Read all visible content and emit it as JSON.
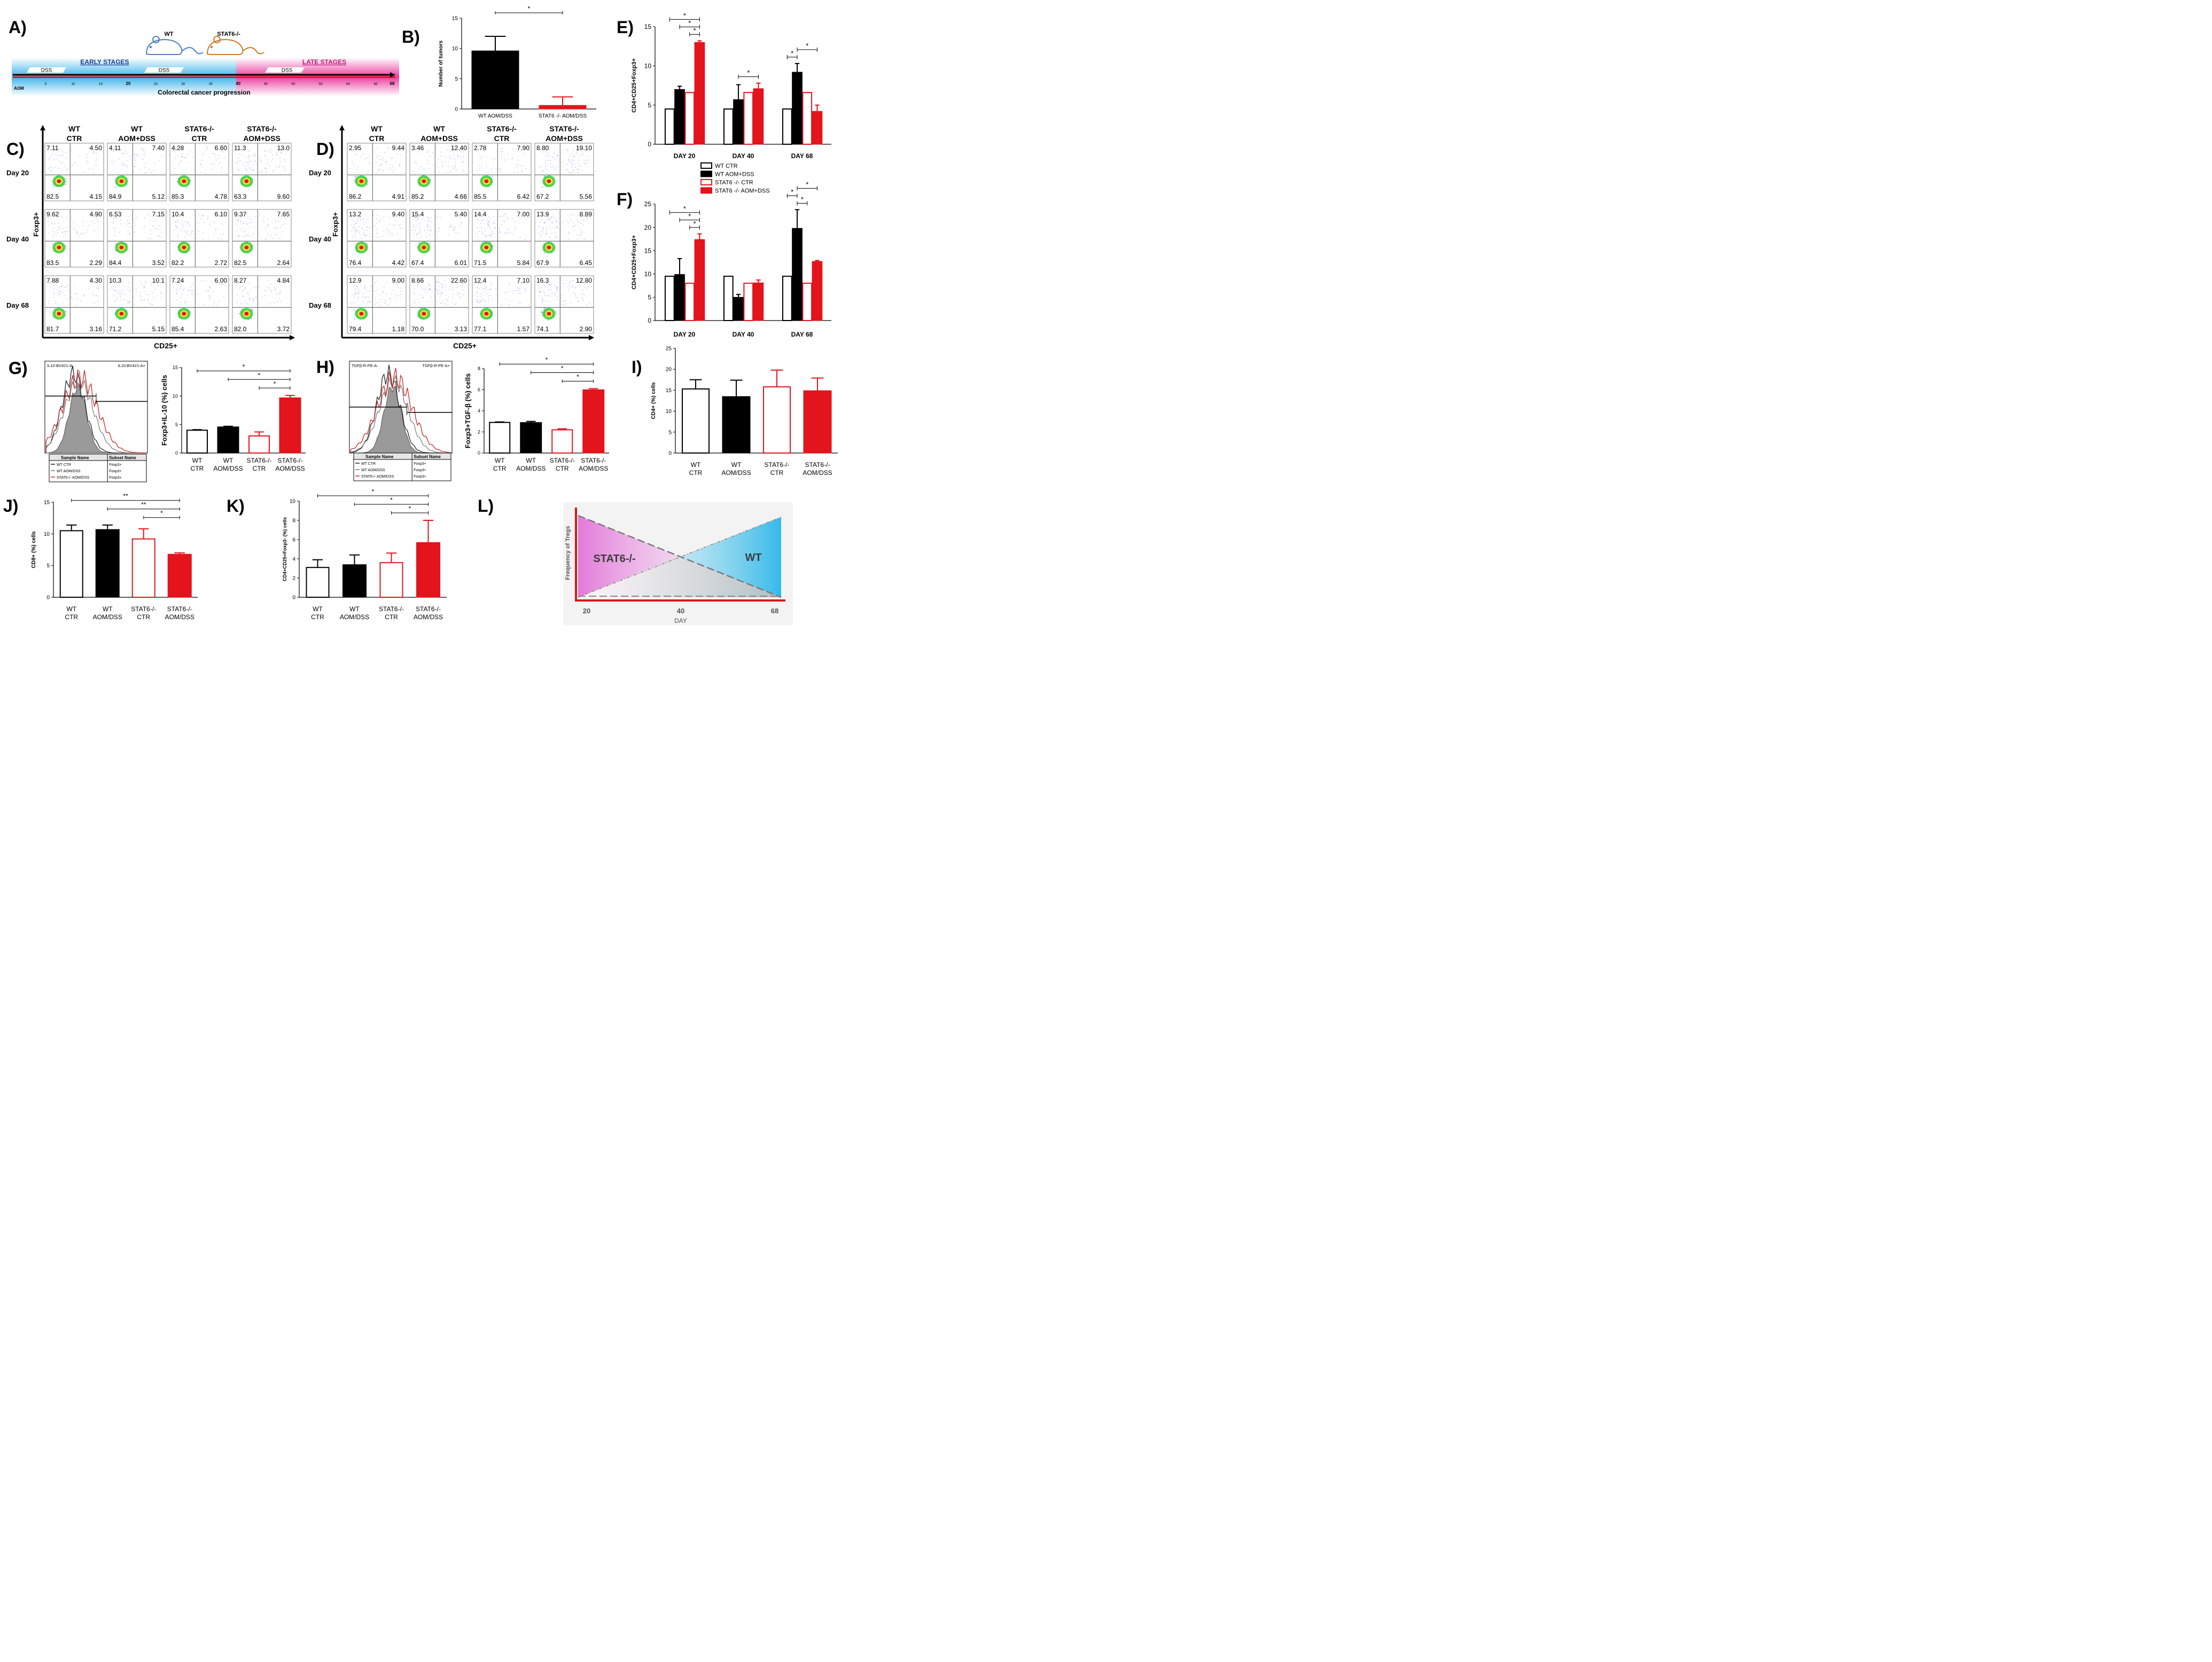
{
  "colors": {
    "black": "#000000",
    "red": "#e3141b",
    "white": "#ffffff",
    "grey": "#9a9a9a",
    "timeline_blue": "#3fb4ea",
    "timeline_pink": "#ea3fa1",
    "early_text": "#1c3f93",
    "late_text": "#c2187a",
    "mouse_wt": "#4f7ec2",
    "mouse_ko": "#c97b2c"
  },
  "panelA": {
    "letter": "A)",
    "wt_label": "WT",
    "ko_label": "STAT6-/-",
    "early_label": "EARLY STAGES",
    "late_label": "LATE STAGES",
    "dss_label": "DSS",
    "aom_label": "AOM",
    "days": [
      "5",
      "10",
      "15",
      "20",
      "25",
      "30",
      "35",
      "40",
      "45",
      "50",
      "55",
      "60",
      "65",
      "68"
    ],
    "bold_days": [
      "20",
      "40",
      "68"
    ],
    "caption": "Colorectal cancer progression"
  },
  "flow": {
    "C": {
      "letter": "C)",
      "x_axis": "CD25+",
      "y_axis": "Foxp3+",
      "columns": [
        [
          "WT",
          "CTR"
        ],
        [
          "WT",
          "AOM+DSS"
        ],
        [
          "STAT6-/-",
          "CTR"
        ],
        [
          "STAT6-/-",
          "AOM+DSS"
        ]
      ],
      "rows": [
        "Day 20",
        "Day 40",
        "Day 68"
      ],
      "values": [
        [
          [
            "7.11",
            "4.50",
            "82.5",
            "4.15"
          ],
          [
            "4.11",
            "7.40",
            "84.9",
            "5.12"
          ],
          [
            "4.28",
            "6.60",
            "85.3",
            "4.78"
          ],
          [
            "11.3",
            "13.0",
            "63.3",
            "9.60"
          ]
        ],
        [
          [
            "9.62",
            "4.90",
            "83.5",
            "2.29"
          ],
          [
            "6.53",
            "7.15",
            "84.4",
            "3.52"
          ],
          [
            "10.4",
            "6.10",
            "82.2",
            "2.72"
          ],
          [
            "9.37",
            "7.65",
            "82.5",
            "2.64"
          ]
        ],
        [
          [
            "7.88",
            "4.30",
            "81.7",
            "3.16"
          ],
          [
            "10.3",
            "10.1",
            "71.2",
            "5.15"
          ],
          [
            "7.24",
            "6.00",
            "85.4",
            "2.63"
          ],
          [
            "8.27",
            "4.84",
            "82.0",
            "3.72"
          ]
        ]
      ]
    },
    "D": {
      "letter": "D)",
      "x_axis": "CD25+",
      "y_axis": "Foxp3+",
      "columns": [
        [
          "WT",
          "CTR"
        ],
        [
          "WT",
          "AOM+DSS"
        ],
        [
          "STAT6-/-",
          "CTR"
        ],
        [
          "STAT6-/-",
          "AOM+DSS"
        ]
      ],
      "rows": [
        "Day 20",
        "Day 40",
        "Day 68"
      ],
      "values": [
        [
          [
            "2.95",
            "9.44",
            "86.2",
            "4.91"
          ],
          [
            "3.46",
            "12.40",
            "85.2",
            "4.66"
          ],
          [
            "2.78",
            "7.90",
            "85.5",
            "6.42"
          ],
          [
            "8.80",
            "19.10",
            "67.2",
            "5.56"
          ]
        ],
        [
          [
            "13.2",
            "9.40",
            "76.4",
            "4.42"
          ],
          [
            "15.4",
            "5.40",
            "67.4",
            "6.01"
          ],
          [
            "14.4",
            "7.00",
            "71.5",
            "5.84"
          ],
          [
            "13.9",
            "8.89",
            "67.9",
            "6.45"
          ]
        ],
        [
          [
            "12.9",
            "9.00",
            "79.4",
            "1.18"
          ],
          [
            "8.66",
            "22.60",
            "70.0",
            "3.13"
          ],
          [
            "12.4",
            "7.10",
            "77.1",
            "1.57"
          ],
          [
            "16.3",
            "12.80",
            "74.1",
            "2.90"
          ]
        ]
      ]
    }
  },
  "histograms": {
    "G": {
      "left_gate": "IL10-BV421-A-",
      "right_gate": "IL10-BV421-A+",
      "table_headers": [
        "Sample Name",
        "Subset Name"
      ],
      "rows": [
        [
          "WT CTR",
          "Foxp3+"
        ],
        [
          "WT AOM/DSS",
          "Foxp3+"
        ],
        [
          "STAT6-/- AOM/DSS",
          "Foxp3+"
        ]
      ]
    },
    "H": {
      "left_gate": "TGFβ-R-PE-A-",
      "right_gate": "TGFβ-R-PE-A+",
      "table_headers": [
        "Sample Name",
        "Subset Name"
      ],
      "rows": [
        [
          "WT CTR",
          "Foxp3+"
        ],
        [
          "WT AOM/DSS",
          "Foxp3+"
        ],
        [
          "STAT6-/- AOM/DSS",
          "Foxp3+"
        ]
      ]
    }
  },
  "legendE": {
    "entries": [
      "WT CTR",
      "WT AOM+DSS",
      "STAT6 -/- CTR",
      "STAT6 -/- AOM+DSS"
    ]
  },
  "panelL": {
    "letter": "L)",
    "ylabel": "Frequency of Tregs",
    "xlabel": "DAY",
    "ticks": [
      "20",
      "40",
      "68"
    ],
    "left_label": "STAT6-/-",
    "right_label": "WT"
  },
  "chart_data": [
    {
      "id": "B",
      "letter": "B)",
      "type": "bar",
      "categories": [
        "WT AOM/DSS",
        "STAT6 -/- AOM/DSS"
      ],
      "values": [
        9.6,
        0.6
      ],
      "errors": [
        2.4,
        1.4
      ],
      "styles": [
        "black",
        "red"
      ],
      "ylabel": "Number of tumors",
      "ylim": [
        0,
        15
      ],
      "yticks": [
        "0",
        "5",
        "10",
        "15"
      ],
      "significance": [
        {
          "from": 0,
          "to": 1,
          "label": "*"
        }
      ]
    },
    {
      "id": "E",
      "letter": "E)",
      "type": "bar",
      "groups": [
        "DAY 20",
        "DAY 40",
        "DAY 68"
      ],
      "series": [
        {
          "name": "WT CTR",
          "style": "open-black",
          "values": [
            4.5,
            4.5,
            4.5
          ],
          "errors": [
            0,
            0,
            0
          ]
        },
        {
          "name": "WT AOM+DSS",
          "style": "black",
          "values": [
            7.0,
            5.7,
            9.2
          ],
          "errors": [
            0.4,
            1.9,
            1.1
          ]
        },
        {
          "name": "STAT6 -/- CTR",
          "style": "open-red",
          "values": [
            6.6,
            6.6,
            6.6
          ],
          "errors": [
            0,
            0,
            0
          ]
        },
        {
          "name": "STAT6 -/- AOM+DSS",
          "style": "red",
          "values": [
            13.0,
            7.1,
            4.2
          ],
          "errors": [
            0.2,
            0.7,
            0.8
          ]
        }
      ],
      "ylabel": "CD4+CD25+Foxp3+",
      "ylim": [
        0,
        15
      ],
      "yticks": [
        "0",
        "5",
        "10",
        "15"
      ],
      "significance": [
        {
          "group": 0,
          "from": 0,
          "to": 3,
          "label": "*"
        },
        {
          "group": 0,
          "from": 1,
          "to": 3,
          "label": "*"
        },
        {
          "group": 0,
          "from": 2,
          "to": 3,
          "label": "*"
        },
        {
          "group": 1,
          "from": 1,
          "to": 3,
          "label": "*"
        },
        {
          "group": 2,
          "from": 0,
          "to": 1,
          "label": "*"
        },
        {
          "group": 2,
          "from": 1,
          "to": 3,
          "label": "*"
        }
      ]
    },
    {
      "id": "F",
      "letter": "F)",
      "type": "bar",
      "groups": [
        "DAY 20",
        "DAY 40",
        "DAY 68"
      ],
      "series": [
        {
          "name": "WT CTR",
          "style": "open-black",
          "values": [
            9.5,
            9.5,
            9.5
          ],
          "errors": [
            0,
            0,
            0
          ]
        },
        {
          "name": "WT AOM+DSS",
          "style": "black",
          "values": [
            9.9,
            5.0,
            19.8
          ],
          "errors": [
            3.4,
            0.6,
            4.0
          ]
        },
        {
          "name": "STAT6 -/- CTR",
          "style": "open-red",
          "values": [
            8.0,
            8.0,
            8.0
          ],
          "errors": [
            0,
            0,
            0
          ]
        },
        {
          "name": "STAT6 -/- AOM+DSS",
          "style": "red",
          "values": [
            17.4,
            8.1,
            12.7
          ],
          "errors": [
            1.2,
            0.6,
            0.2
          ]
        }
      ],
      "ylabel": "CD4+CD25+Foxp3+",
      "ylim": [
        0,
        25
      ],
      "yticks": [
        "0",
        "5",
        "10",
        "15",
        "20",
        "25"
      ],
      "significance": [
        {
          "group": 0,
          "from": 0,
          "to": 3,
          "label": "*"
        },
        {
          "group": 0,
          "from": 1,
          "to": 3,
          "label": "*"
        },
        {
          "group": 0,
          "from": 2,
          "to": 3,
          "label": "*"
        },
        {
          "group": 2,
          "from": 0,
          "to": 1,
          "label": "*"
        },
        {
          "group": 2,
          "from": 1,
          "to": 2,
          "label": "*"
        },
        {
          "group": 2,
          "from": 1,
          "to": 3,
          "label": "*"
        }
      ]
    },
    {
      "id": "G",
      "letter": "G)",
      "type": "bar",
      "categories": [
        [
          "WT",
          "CTR"
        ],
        [
          "WT",
          "AOM/DSS"
        ],
        [
          "STAT6-/-",
          "CTR"
        ],
        [
          "STAT6-/-",
          "AOM/DSS"
        ]
      ],
      "values": [
        4.0,
        4.6,
        3.0,
        9.7
      ],
      "errors": [
        0.1,
        0.1,
        0.7,
        0.4
      ],
      "styles": [
        "open-black",
        "black",
        "open-red",
        "red"
      ],
      "ylabel": "Foxp3+IL-10 (%) cells",
      "ylim": [
        0,
        15
      ],
      "yticks": [
        "0",
        "5",
        "10",
        "15"
      ],
      "significance": [
        {
          "from": 0,
          "to": 3,
          "label": "*"
        },
        {
          "from": 1,
          "to": 3,
          "label": "*"
        },
        {
          "from": 2,
          "to": 3,
          "label": "*"
        }
      ]
    },
    {
      "id": "H",
      "letter": "H)",
      "type": "bar",
      "categories": [
        [
          "WT",
          "CTR"
        ],
        [
          "WT",
          "AOM/DSS"
        ],
        [
          "STAT6-/-",
          "CTR"
        ],
        [
          "STAT6-/-",
          "AOM/DSS"
        ]
      ],
      "values": [
        2.9,
        2.9,
        2.2,
        6.0
      ],
      "errors": [
        0.05,
        0.1,
        0.1,
        0.1
      ],
      "styles": [
        "open-black",
        "black",
        "open-red",
        "red"
      ],
      "ylabel": "Foxp3+TGF-β (%) cells",
      "ylim": [
        0,
        8
      ],
      "yticks": [
        "0",
        "2",
        "4",
        "6",
        "8"
      ],
      "significance": [
        {
          "from": 0,
          "to": 3,
          "label": "*"
        },
        {
          "from": 1,
          "to": 3,
          "label": "*"
        },
        {
          "from": 2,
          "to": 3,
          "label": "*"
        }
      ]
    },
    {
      "id": "I",
      "letter": "I)",
      "type": "bar",
      "categories": [
        [
          "WT",
          "CTR"
        ],
        [
          "WT",
          "AOM/DSS"
        ],
        [
          "STAT6-/-",
          "CTR"
        ],
        [
          "STAT6-/-",
          "AOM/DSS"
        ]
      ],
      "values": [
        15.3,
        13.5,
        15.8,
        14.9
      ],
      "errors": [
        2.2,
        3.9,
        4.0,
        3.0
      ],
      "styles": [
        "open-black",
        "black",
        "open-red",
        "red"
      ],
      "ylabel": "CD4+ (%) cells",
      "ylim": [
        0,
        25
      ],
      "yticks": [
        "0",
        "5",
        "10",
        "15",
        "20",
        "25"
      ],
      "significance": []
    },
    {
      "id": "J",
      "letter": "J)",
      "type": "bar",
      "categories": [
        [
          "WT",
          "CTR"
        ],
        [
          "WT",
          "AOM/DSS"
        ],
        [
          "STAT6-/-",
          "CTR"
        ],
        [
          "STAT6-/-",
          "AOM/DSS"
        ]
      ],
      "values": [
        10.5,
        10.7,
        9.2,
        6.8
      ],
      "errors": [
        0.9,
        0.7,
        1.6,
        0.2
      ],
      "styles": [
        "open-black",
        "black",
        "open-red",
        "red"
      ],
      "ylabel": "CD8+ (%) cells",
      "ylim": [
        0,
        15
      ],
      "yticks": [
        "0",
        "5",
        "10",
        "15"
      ],
      "significance": [
        {
          "from": 0,
          "to": 3,
          "label": "**"
        },
        {
          "from": 1,
          "to": 3,
          "label": "**"
        },
        {
          "from": 2,
          "to": 3,
          "label": "*"
        }
      ]
    },
    {
      "id": "K",
      "letter": "K)",
      "type": "bar",
      "categories": [
        [
          "WT",
          "CTR"
        ],
        [
          "WT",
          "AOM/DSS"
        ],
        [
          "STAT6-/-",
          "CTR"
        ],
        [
          "STAT6-/-",
          "AOM/DSS"
        ]
      ],
      "values": [
        3.1,
        3.4,
        3.6,
        5.7
      ],
      "errors": [
        0.8,
        1.0,
        1.0,
        2.3
      ],
      "styles": [
        "open-black",
        "black",
        "open-red",
        "red"
      ],
      "ylabel": "CD4+CD25+Foxp3- (%) cells",
      "ylim": [
        0,
        10
      ],
      "yticks": [
        "0",
        "2",
        "4",
        "6",
        "8",
        "10"
      ],
      "significance": [
        {
          "from": 0,
          "to": 3,
          "label": "*"
        },
        {
          "from": 1,
          "to": 3,
          "label": "*"
        },
        {
          "from": 2,
          "to": 3,
          "label": "*"
        }
      ]
    }
  ]
}
